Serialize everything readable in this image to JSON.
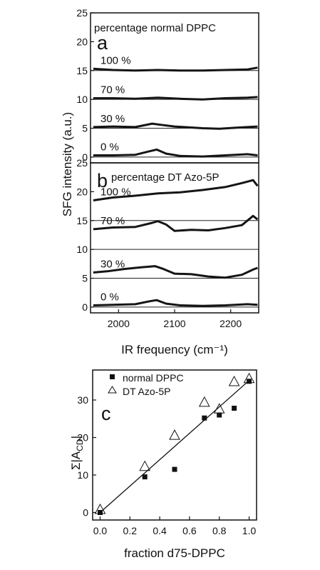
{
  "chart_data": [
    {
      "type": "line",
      "panel_label": "a",
      "title": "percentage normal DPPC",
      "ylabel": "SFG intensity (a.u.)",
      "xlim": [
        1950,
        2250
      ],
      "ylim": [
        -1,
        25
      ],
      "yticks": [
        "0",
        "5",
        "10",
        "15",
        "20",
        "25"
      ],
      "baselines": [
        0,
        5,
        10,
        15
      ],
      "series": [
        {
          "name": "100 %",
          "x": [
            1955,
            1990,
            2030,
            2070,
            2110,
            2150,
            2190,
            2230,
            2248
          ],
          "y": [
            15.3,
            15.1,
            15.0,
            15.1,
            15.0,
            15.0,
            15.1,
            15.2,
            15.5
          ]
        },
        {
          "name": "70 %",
          "x": [
            1955,
            1990,
            2030,
            2070,
            2110,
            2150,
            2190,
            2230,
            2248
          ],
          "y": [
            10.2,
            10.2,
            10.1,
            10.3,
            10.1,
            10.0,
            10.2,
            10.3,
            10.4
          ]
        },
        {
          "name": "30 %",
          "x": [
            1955,
            1990,
            2030,
            2060,
            2075,
            2100,
            2150,
            2180,
            2210,
            2248
          ],
          "y": [
            5.2,
            5.3,
            5.2,
            5.8,
            5.6,
            5.3,
            5.0,
            4.9,
            5.1,
            5.3
          ]
        },
        {
          "name": "0 %",
          "x": [
            1955,
            1990,
            2030,
            2055,
            2068,
            2085,
            2110,
            2150,
            2190,
            2230,
            2248
          ],
          "y": [
            0.3,
            0.3,
            0.4,
            1.0,
            1.3,
            0.6,
            0.2,
            0.1,
            0.3,
            0.5,
            0.3
          ]
        }
      ]
    },
    {
      "type": "line",
      "panel_label": "b",
      "title": "percentage DT Azo-5P",
      "xlabel": "IR frequency (cm⁻¹)",
      "xlim": [
        1950,
        2250
      ],
      "ylim": [
        -1,
        25
      ],
      "xticks": [
        "2000",
        "2100",
        "2200"
      ],
      "yticks": [
        "0",
        "5",
        "10",
        "15",
        "20",
        "25"
      ],
      "baselines": [
        0,
        5,
        10,
        15
      ],
      "series": [
        {
          "name": "100 %",
          "x": [
            1955,
            1990,
            2030,
            2070,
            2110,
            2150,
            2190,
            2220,
            2240,
            2248
          ],
          "y": [
            18.5,
            19.0,
            19.3,
            19.7,
            19.9,
            20.3,
            20.8,
            21.5,
            22.0,
            21.0
          ]
        },
        {
          "name": "70 %",
          "x": [
            1955,
            1990,
            2030,
            2060,
            2070,
            2085,
            2100,
            2130,
            2160,
            2190,
            2220,
            2240,
            2248
          ],
          "y": [
            13.5,
            13.8,
            13.9,
            14.6,
            14.9,
            14.3,
            13.2,
            13.4,
            13.3,
            13.7,
            14.2,
            15.8,
            15.2
          ]
        },
        {
          "name": "30 %",
          "x": [
            1955,
            1980,
            2010,
            2040,
            2065,
            2080,
            2100,
            2130,
            2160,
            2190,
            2220,
            2240,
            2248
          ],
          "y": [
            6.0,
            6.2,
            6.6,
            6.9,
            7.1,
            6.6,
            5.8,
            5.7,
            5.3,
            5.1,
            5.6,
            6.5,
            6.8
          ]
        },
        {
          "name": "0 %",
          "x": [
            1955,
            1990,
            2030,
            2055,
            2068,
            2085,
            2110,
            2150,
            2190,
            2230,
            2248
          ],
          "y": [
            0.3,
            0.4,
            0.5,
            1.0,
            1.2,
            0.6,
            0.3,
            0.2,
            0.3,
            0.5,
            0.4
          ]
        }
      ]
    },
    {
      "type": "scatter",
      "panel_label": "c",
      "xlabel": "fraction d75-DPPC",
      "ylabel": "Σ|A",
      "ylabel_sub": "CD",
      "ylabel_end": "|",
      "xlim": [
        -0.05,
        1.05
      ],
      "ylim": [
        -2,
        38
      ],
      "xticks": [
        "0.0",
        "0.2",
        "0.4",
        "0.6",
        "0.8",
        "1.0"
      ],
      "yticks": [
        "0",
        "10",
        "20",
        "30"
      ],
      "series": [
        {
          "name": "normal DPPC",
          "marker": "square",
          "x": [
            0.0,
            0.3,
            0.5,
            0.7,
            0.8,
            0.9,
            1.0
          ],
          "y": [
            0.0,
            9.5,
            11.5,
            25.2,
            26.0,
            27.8,
            35.0
          ]
        },
        {
          "name": "DT Azo-5P",
          "marker": "triangle",
          "x": [
            0.0,
            0.3,
            0.5,
            0.7,
            0.8,
            0.9,
            1.0
          ],
          "y": [
            0.7,
            12.2,
            20.5,
            29.3,
            27.5,
            34.8,
            35.6
          ]
        }
      ],
      "fit_line": {
        "x": [
          0.0,
          1.0
        ],
        "y": [
          0.0,
          35.2
        ]
      }
    }
  ]
}
